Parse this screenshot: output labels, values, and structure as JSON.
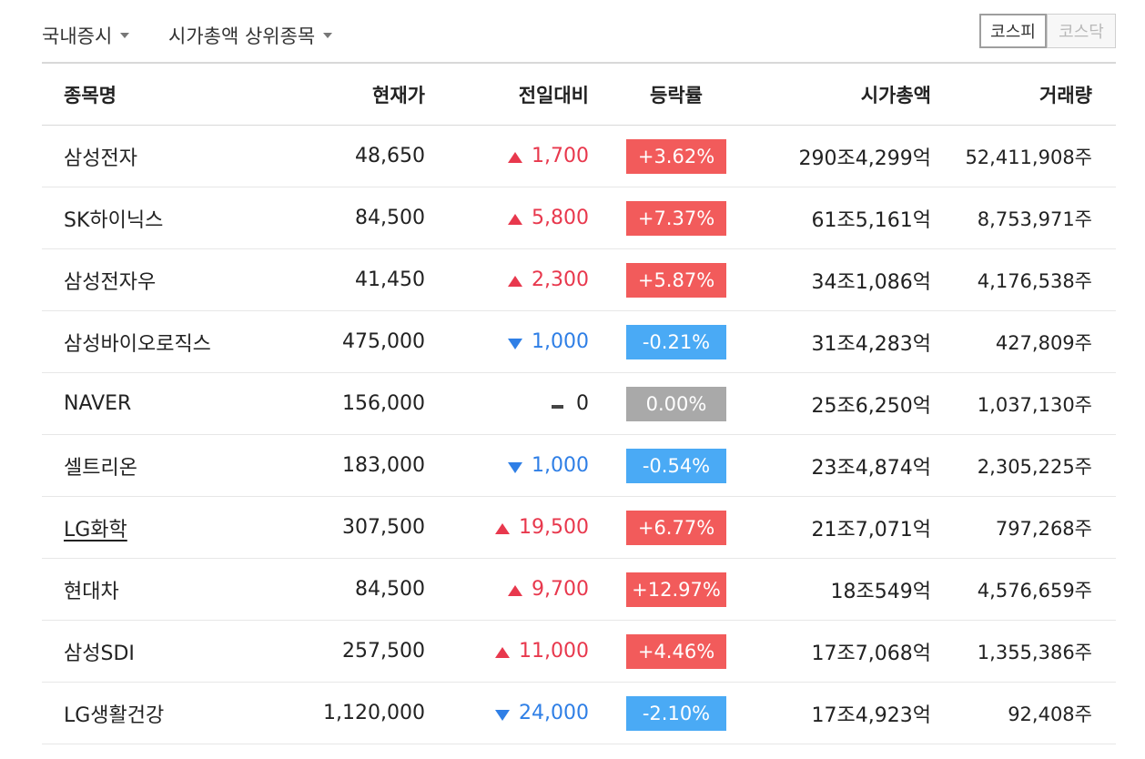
{
  "filters": {
    "market_label": "국내증시",
    "category_label": "시가총액 상위종목"
  },
  "segment": {
    "kospi": "코스피",
    "kosdaq": "코스닥",
    "selected": "kospi"
  },
  "table": {
    "headers": {
      "name": "종목명",
      "price": "현재가",
      "change": "전일대비",
      "rate": "등락률",
      "cap": "시가총액",
      "volume": "거래량"
    },
    "rows": [
      {
        "name": "삼성전자",
        "price": "48,650",
        "change": "1,700",
        "dir": "up",
        "rate": "+3.62%",
        "cap": "290조4,299억",
        "volume": "52,411,908주",
        "link": false
      },
      {
        "name": "SK하이닉스",
        "price": "84,500",
        "change": "5,800",
        "dir": "up",
        "rate": "+7.37%",
        "cap": "61조5,161억",
        "volume": "8,753,971주",
        "link": false
      },
      {
        "name": "삼성전자우",
        "price": "41,450",
        "change": "2,300",
        "dir": "up",
        "rate": "+5.87%",
        "cap": "34조1,086억",
        "volume": "4,176,538주",
        "link": false
      },
      {
        "name": "삼성바이오로직스",
        "price": "475,000",
        "change": "1,000",
        "dir": "down",
        "rate": "-0.21%",
        "cap": "31조4,283억",
        "volume": "427,809주",
        "link": false
      },
      {
        "name": "NAVER",
        "price": "156,000",
        "change": "0",
        "dir": "flat",
        "rate": "0.00%",
        "cap": "25조6,250억",
        "volume": "1,037,130주",
        "link": false
      },
      {
        "name": "셀트리온",
        "price": "183,000",
        "change": "1,000",
        "dir": "down",
        "rate": "-0.54%",
        "cap": "23조4,874억",
        "volume": "2,305,225주",
        "link": false
      },
      {
        "name": "LG화학",
        "price": "307,500",
        "change": "19,500",
        "dir": "up",
        "rate": "+6.77%",
        "cap": "21조7,071억",
        "volume": "797,268주",
        "link": true
      },
      {
        "name": "현대차",
        "price": "84,500",
        "change": "9,700",
        "dir": "up",
        "rate": "+12.97%",
        "cap": "18조549억",
        "volume": "4,576,659주",
        "link": false
      },
      {
        "name": "삼성SDI",
        "price": "257,500",
        "change": "11,000",
        "dir": "up",
        "rate": "+4.46%",
        "cap": "17조7,068억",
        "volume": "1,355,386주",
        "link": false
      },
      {
        "name": "LG생활건강",
        "price": "1,120,000",
        "change": "24,000",
        "dir": "down",
        "rate": "-2.10%",
        "cap": "17조4,923억",
        "volume": "92,408주",
        "link": false
      }
    ]
  },
  "colors": {
    "up": "#e8384d",
    "down": "#2f7fe6",
    "up_badge": "#f25b5b",
    "down_badge": "#4aaaf5",
    "flat_badge": "#a9a9a9"
  }
}
